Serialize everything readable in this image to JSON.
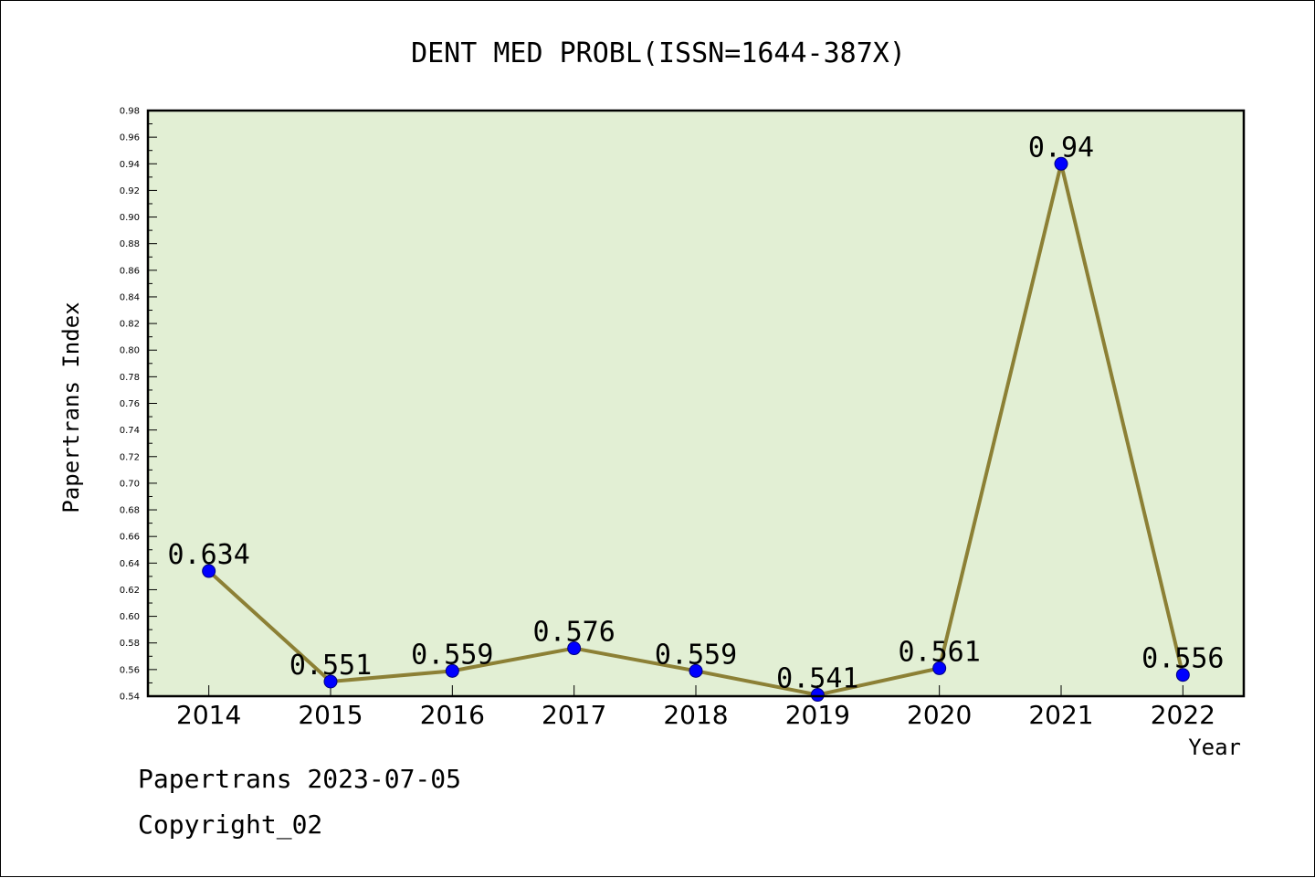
{
  "chart_data": {
    "type": "line",
    "title": "DENT MED PROBL(ISSN=1644-387X)",
    "xlabel": "Year",
    "ylabel": "Papertrans Index",
    "categories": [
      "2014",
      "2015",
      "2016",
      "2017",
      "2018",
      "2019",
      "2020",
      "2021",
      "2022"
    ],
    "series": [
      {
        "values": [
          0.634,
          0.551,
          0.559,
          0.576,
          0.559,
          0.541,
          0.561,
          0.94,
          0.556
        ],
        "labels": [
          "0.634",
          "0.551",
          "0.559",
          "0.576",
          "0.559",
          "0.541",
          "0.561",
          "0.94",
          "0.556"
        ]
      }
    ],
    "ylim": [
      0.54,
      0.98
    ],
    "ytick_step": 0.02,
    "ytick_labels": [
      "0.54",
      "0.56",
      "0.58",
      "0.60",
      "0.62",
      "0.64",
      "0.66",
      "0.68",
      "0.70",
      "0.72",
      "0.74",
      "0.76",
      "0.78",
      "0.80",
      "0.82",
      "0.84",
      "0.86",
      "0.88",
      "0.90",
      "0.92",
      "0.94",
      "0.96",
      "0.98"
    ],
    "grid": false,
    "legend": "none",
    "colors": {
      "plot_background": "#e2efd4",
      "line": "#8c8035",
      "marker": "#0000ff",
      "axis": "#000000"
    }
  },
  "footer": {
    "line1": "Papertrans 2023-07-05",
    "line2": "Copyright_02"
  }
}
